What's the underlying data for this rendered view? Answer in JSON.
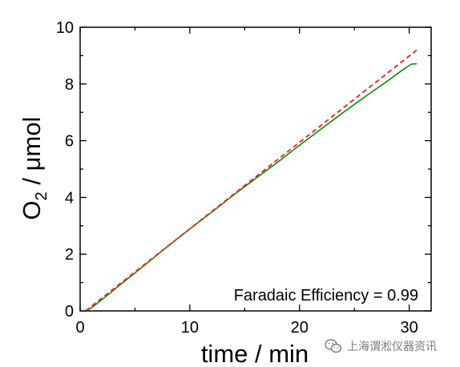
{
  "chart_data": {
    "type": "line",
    "title": "",
    "xlabel": "time / min",
    "ylabel_main": "O",
    "ylabel_sub": "2",
    "ylabel_rest": " / μmol",
    "xlim": [
      0,
      32
    ],
    "ylim": [
      0,
      10
    ],
    "xticks": [
      0,
      10,
      20,
      30
    ],
    "yticks": [
      0,
      2,
      4,
      6,
      8,
      10
    ],
    "grid": false,
    "annotation": "Faradaic Efficiency = 0.99",
    "series": [
      {
        "style": "solid",
        "color": "#118811",
        "x": [
          0.5,
          1,
          2,
          4,
          6,
          8,
          10,
          12,
          14,
          16,
          18,
          20,
          22,
          24,
          26,
          28,
          29,
          29.6,
          30,
          30.2,
          30.5,
          30.7
        ],
        "y": [
          0.0,
          0.1,
          0.4,
          1.03,
          1.65,
          2.28,
          2.89,
          3.48,
          4.09,
          4.67,
          5.24,
          5.84,
          6.42,
          7.0,
          7.56,
          8.1,
          8.38,
          8.55,
          8.65,
          8.7,
          8.71,
          8.71
        ]
      },
      {
        "style": "dashed",
        "color": "#e8302a",
        "x": [
          0.5,
          30.7
        ],
        "y": [
          0.0,
          9.2
        ]
      }
    ]
  },
  "watermark": {
    "text": "上海谓淞仪器资讯",
    "icon": "wechat-icon"
  }
}
